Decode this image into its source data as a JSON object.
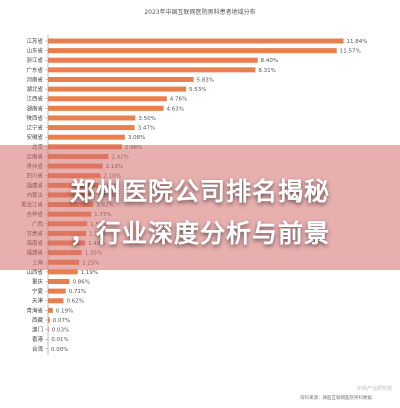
{
  "chart_data": {
    "type": "bar",
    "orientation": "horizontal",
    "title": "2023年中国互联网医院男科患者地域分布",
    "categories": [
      "江苏省",
      "山东省",
      "浙江省",
      "广东省",
      "河南省",
      "湖北省",
      "江西省",
      "湖南省",
      "陕西省",
      "辽宁省",
      "安徽省",
      "北京",
      "云南省",
      "贵州省",
      "四川省",
      "福建省",
      "内蒙古",
      "黑龙江省",
      "吉林省",
      "广西",
      "甘肃省",
      "海南省",
      "福建省",
      "上海",
      "山西省",
      "重庆",
      "宁夏",
      "天津",
      "青海省",
      "西藏",
      "澳门",
      "香港",
      "台湾"
    ],
    "values": [
      11.84,
      11.57,
      8.4,
      8.31,
      5.83,
      5.53,
      4.76,
      4.63,
      3.5,
      3.47,
      3.08,
      2.96,
      2.42,
      2.19,
      2.1,
      2.03,
      1.89,
      1.82,
      1.73,
      1.57,
      1.52,
      1.49,
      1.35,
      1.25,
      1.19,
      0.86,
      0.71,
      0.62,
      0.19,
      0.07,
      0.03,
      0.01,
      0.0
    ],
    "labels": [
      "11.84%",
      "11.57%",
      "8.40%",
      "8.31%",
      "5.83%",
      "5.53%",
      "4.76%",
      "4.63%",
      "3.50%",
      "3.47%",
      "3.08%",
      "2.96%",
      "2.42%",
      "2.19%",
      "2.10%",
      "2.03%",
      "1.89%",
      "1.82%",
      "1.73%",
      "1.57%",
      "1.52%",
      "1.49%",
      "1.35%",
      "1.25%",
      "1.19%",
      "0.86%",
      "0.71%",
      "0.62%",
      "0.19%",
      "0.07%",
      "0.03%",
      "0.01%",
      "0.00%"
    ],
    "xlim": [
      0,
      12.5
    ],
    "grid": false,
    "bar_color": "#e8804e",
    "source_note": "资料来源：微医互联网医院男科数据",
    "watermark": "中商产业研究院"
  },
  "headline": {
    "line1": "郑州医院公司排名揭秘",
    "line2": "，行业深度分析与前景"
  },
  "colors": {
    "bar": "#e8804e",
    "overlay": "#d66e6e",
    "axis": "#999999",
    "text": "#555555"
  }
}
